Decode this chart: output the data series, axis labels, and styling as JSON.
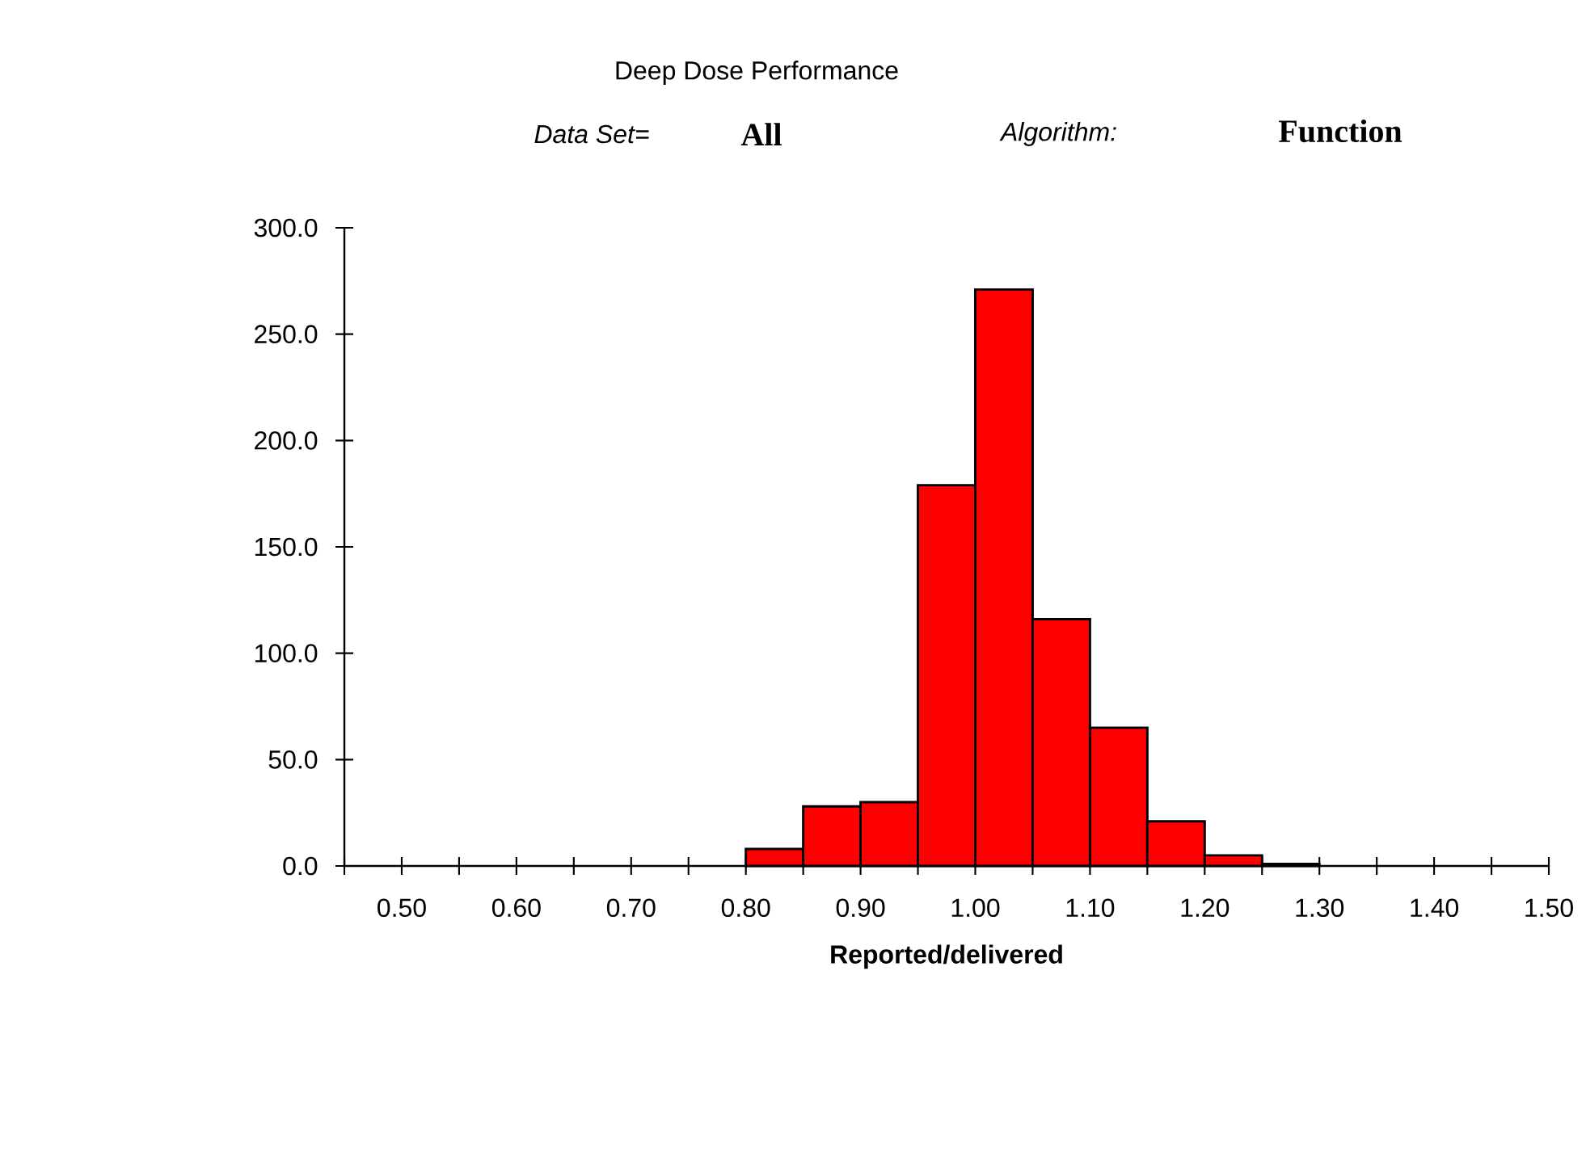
{
  "chart_data": {
    "type": "histogram",
    "title": "Deep Dose Performance",
    "annotations": [
      "Data Set=",
      "All",
      "Algorithm:",
      "Function"
    ],
    "xlabel": "Reported/delivered",
    "bins": [
      0.8,
      0.85,
      0.9,
      0.95,
      1.0,
      1.05,
      1.1,
      1.15,
      1.2,
      1.25,
      1.3
    ],
    "values": [
      8,
      28,
      30,
      179,
      271,
      116,
      65,
      21,
      5,
      1
    ],
    "color": "#ff0000",
    "xlim": [
      0.45,
      1.5
    ],
    "xticks": [
      {
        "value": 0.45,
        "label": null
      },
      {
        "value": 0.5,
        "label": "0.50"
      },
      {
        "value": 0.55,
        "label": null
      },
      {
        "value": 0.6,
        "label": "0.60"
      },
      {
        "value": 0.65,
        "label": null
      },
      {
        "value": 0.7,
        "label": "0.70"
      },
      {
        "value": 0.75,
        "label": null
      },
      {
        "value": 0.8,
        "label": "0.80"
      },
      {
        "value": 0.85,
        "label": null
      },
      {
        "value": 0.9,
        "label": "0.90"
      },
      {
        "value": 0.95,
        "label": null
      },
      {
        "value": 1.0,
        "label": "1.00"
      },
      {
        "value": 1.05,
        "label": null
      },
      {
        "value": 1.1,
        "label": "1.10"
      },
      {
        "value": 1.15,
        "label": null
      },
      {
        "value": 1.2,
        "label": "1.20"
      },
      {
        "value": 1.25,
        "label": null
      },
      {
        "value": 1.3,
        "label": "1.30"
      },
      {
        "value": 1.35,
        "label": null
      },
      {
        "value": 1.4,
        "label": "1.40"
      },
      {
        "value": 1.45,
        "label": null
      },
      {
        "value": 1.5,
        "label": "1.50"
      }
    ],
    "ylim": [
      0,
      300
    ],
    "yticks": [
      {
        "value": 0,
        "label": "0.0"
      },
      {
        "value": 50,
        "label": "50.0"
      },
      {
        "value": 100,
        "label": "100.0"
      },
      {
        "value": 150,
        "label": "150.0"
      },
      {
        "value": 200,
        "label": "200.0"
      },
      {
        "value": 250,
        "label": "250.0"
      },
      {
        "value": 300,
        "label": "300.0"
      }
    ]
  }
}
